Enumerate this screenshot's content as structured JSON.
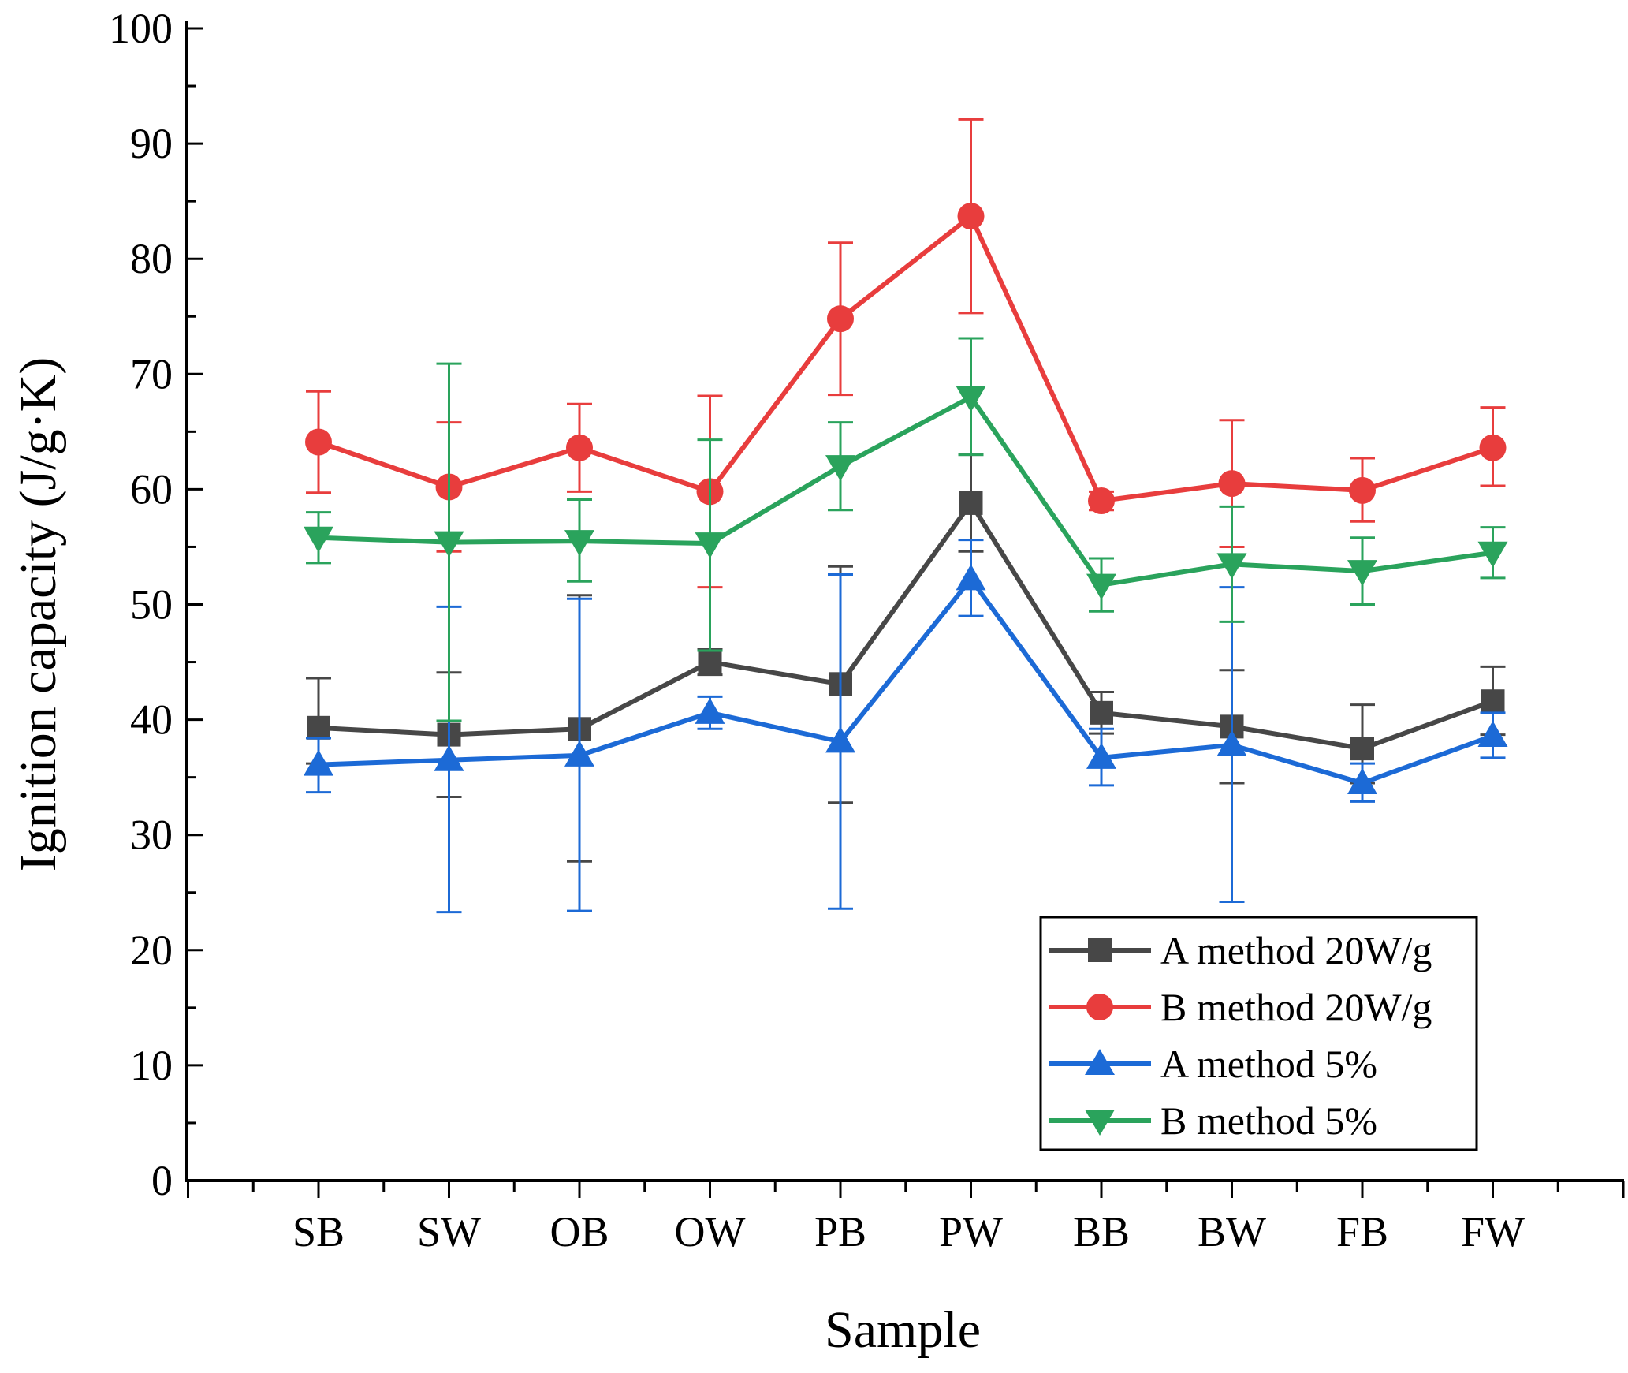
{
  "chart_data": {
    "type": "line",
    "title": "",
    "xlabel": "Sample",
    "ylabel": "Ignition capacity (J/g·K)",
    "ylim": [
      0,
      100
    ],
    "yticks": [
      "0",
      "10",
      "20",
      "30",
      "40",
      "50",
      "60",
      "70",
      "80",
      "90",
      "100"
    ],
    "categories": [
      "SB",
      "SW",
      "OB",
      "OW",
      "PB",
      "PW",
      "BB",
      "BW",
      "FB",
      "FW"
    ],
    "legend_position": "bottom-right",
    "series": [
      {
        "name": "A method 20W/g",
        "color": "#474747",
        "marker": "square",
        "values": [
          39.3,
          38.7,
          39.2,
          45.0,
          43.1,
          58.8,
          40.6,
          39.4,
          37.5,
          41.6
        ],
        "err_upper": [
          43.6,
          44.1,
          50.8,
          46.1,
          53.3,
          63.0,
          42.4,
          44.3,
          41.3,
          44.6
        ],
        "err_lower": [
          36.2,
          33.3,
          27.7,
          43.9,
          32.8,
          54.6,
          38.8,
          34.5,
          34.5,
          38.7
        ]
      },
      {
        "name": "B method 20W/g",
        "color": "#e83d3d",
        "marker": "circle",
        "values": [
          64.1,
          60.2,
          63.6,
          59.8,
          74.8,
          83.7,
          59.0,
          60.5,
          59.9,
          63.6
        ],
        "err_upper": [
          68.5,
          65.8,
          67.4,
          68.1,
          81.4,
          92.1,
          59.8,
          66.0,
          62.7,
          67.1
        ],
        "err_lower": [
          59.7,
          54.6,
          59.8,
          51.5,
          68.2,
          75.3,
          58.2,
          55.0,
          57.2,
          60.3
        ]
      },
      {
        "name": "A method 5%",
        "color": "#1c6ad6",
        "marker": "triangle-up",
        "values": [
          36.1,
          36.5,
          36.9,
          40.6,
          38.1,
          52.2,
          36.7,
          37.8,
          34.5,
          38.6
        ],
        "err_upper": [
          38.4,
          49.8,
          50.5,
          42.0,
          52.6,
          55.6,
          39.2,
          51.5,
          36.2,
          40.6
        ],
        "err_lower": [
          33.7,
          23.3,
          23.4,
          39.2,
          23.6,
          49.0,
          34.3,
          24.2,
          32.9,
          36.7
        ]
      },
      {
        "name": "B method 5%",
        "color": "#2aa35c",
        "marker": "triangle-down",
        "values": [
          55.8,
          55.4,
          55.5,
          55.3,
          62.0,
          68.0,
          51.7,
          53.5,
          52.9,
          54.5
        ],
        "err_upper": [
          58.0,
          70.9,
          59.1,
          64.3,
          65.8,
          73.1,
          54.0,
          58.5,
          55.8,
          56.7
        ],
        "err_lower": [
          53.6,
          39.9,
          52.0,
          46.0,
          58.2,
          63.0,
          49.4,
          48.5,
          50.0,
          52.3
        ]
      }
    ]
  }
}
